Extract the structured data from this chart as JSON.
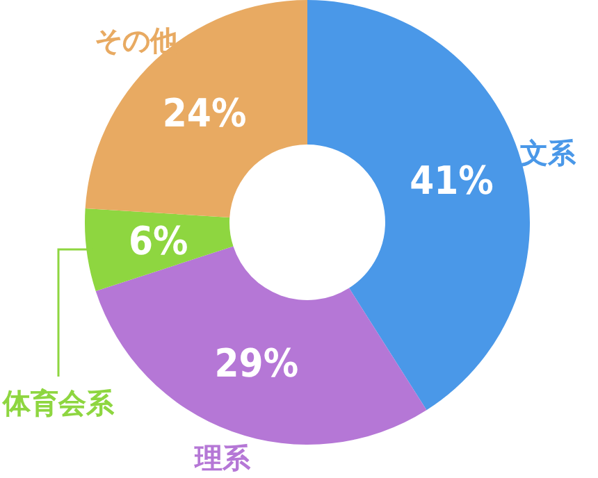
{
  "chart_data": {
    "type": "donut",
    "categories": [
      "文系",
      "理系",
      "体育会系",
      "その他"
    ],
    "values": [
      41,
      29,
      6,
      24
    ],
    "value_labels": [
      "41%",
      "29%",
      "6%",
      "24%"
    ],
    "colors": [
      "#4a98e8",
      "#b577d6",
      "#8ed640",
      "#e8aa62"
    ],
    "legend": false
  }
}
